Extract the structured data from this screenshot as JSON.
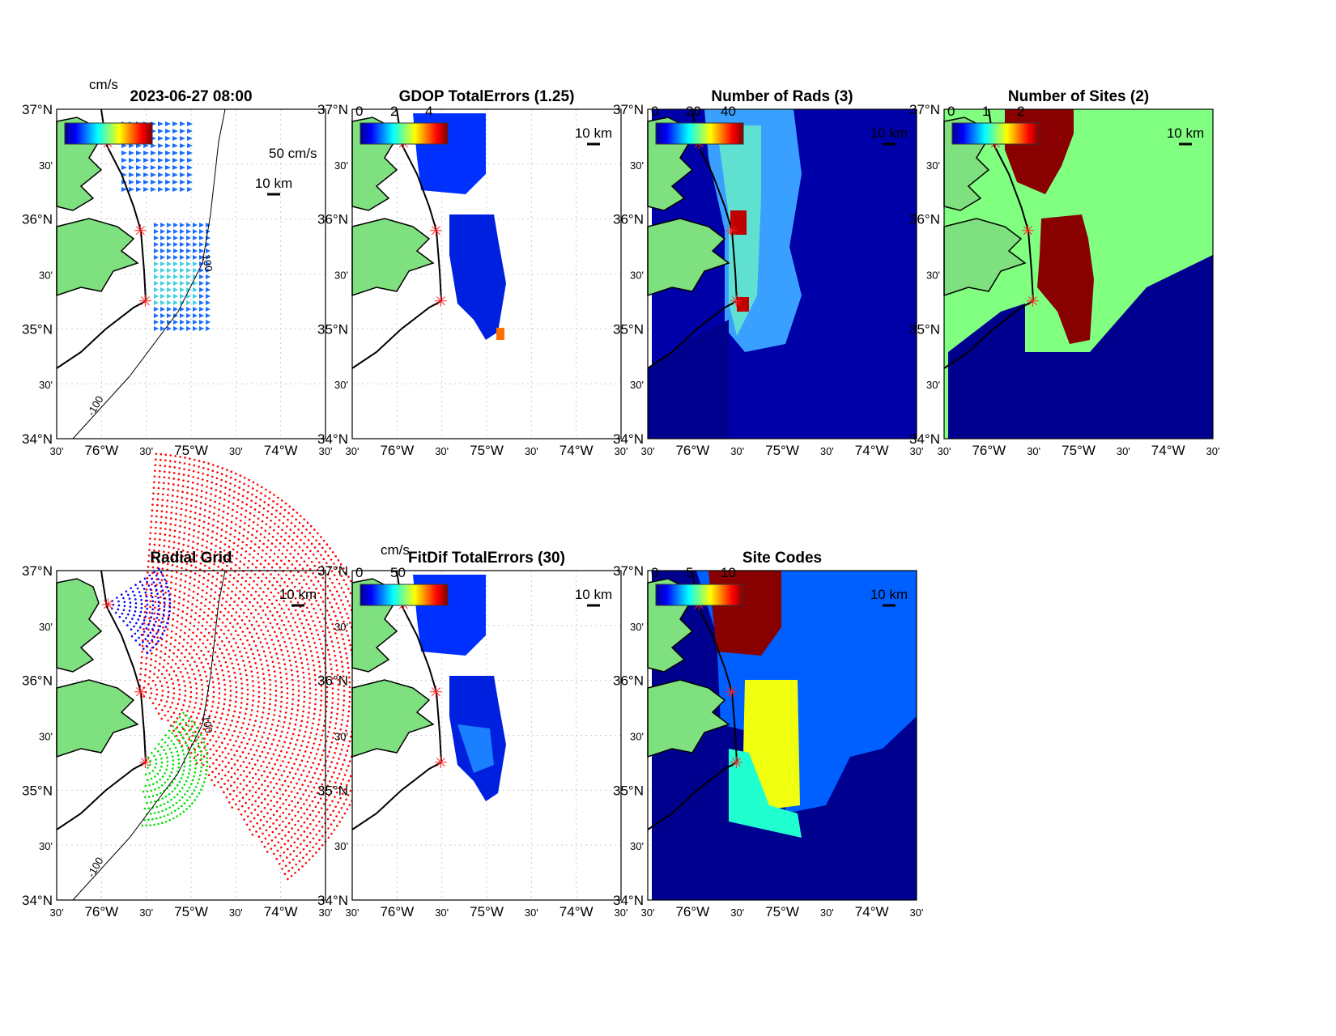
{
  "figure_title": "2023-06-27 08:00",
  "lat_ticks": [
    "37°N",
    "30'",
    "36°N",
    "30'",
    "35°N",
    "30'",
    "34°N"
  ],
  "lon_ticks": [
    "30'",
    "76°W",
    "30'",
    "75°W",
    "30'",
    "74°W",
    "30'"
  ],
  "scale_label": "10 km",
  "colors": {
    "land": "#7fe07f",
    "site": "#ff2020",
    "dark_blue": "#00008f",
    "blue": "#0060ff",
    "green": "#80ff80",
    "dark_red": "#800000",
    "yellow": "#f0ff10",
    "cyan": "#20ffd0"
  },
  "chart_data": [
    {
      "type": "heatmap",
      "title": "2023-06-27 08:00",
      "colorbar_unit": "cm/s",
      "colorbar_ticks": [],
      "vector_scale": "50 cm/s",
      "contour_labels": [
        "100",
        "-100"
      ]
    },
    {
      "type": "heatmap",
      "title": "GDOP TotalErrors (1.25)",
      "colorbar_unit": "",
      "colorbar_ticks": [
        "0",
        "2",
        "4"
      ],
      "contour_labels": [
        "1.25"
      ]
    },
    {
      "type": "heatmap",
      "title": "Number of Rads (3)",
      "colorbar_unit": "",
      "colorbar_ticks": [
        "0",
        "20",
        "40"
      ],
      "contour_labels": [
        "3"
      ]
    },
    {
      "type": "heatmap",
      "title": "Number of Sites (2)",
      "colorbar_unit": "",
      "colorbar_ticks": [
        "0",
        "1",
        "2"
      ],
      "contour_labels": [
        "2"
      ]
    },
    {
      "type": "scatter",
      "title": "Radial Grid",
      "colorbar_unit": "",
      "colorbar_ticks": [],
      "contour_labels": [
        "100",
        "-100"
      ]
    },
    {
      "type": "heatmap",
      "title": "FitDif TotalErrors (30)",
      "colorbar_unit": "cm/s",
      "colorbar_ticks": [
        "0",
        "50"
      ],
      "contour_labels": []
    },
    {
      "type": "heatmap",
      "title": "Site Codes",
      "colorbar_unit": "",
      "colorbar_ticks": [
        "0",
        "5",
        "10"
      ],
      "contour_labels": []
    }
  ]
}
